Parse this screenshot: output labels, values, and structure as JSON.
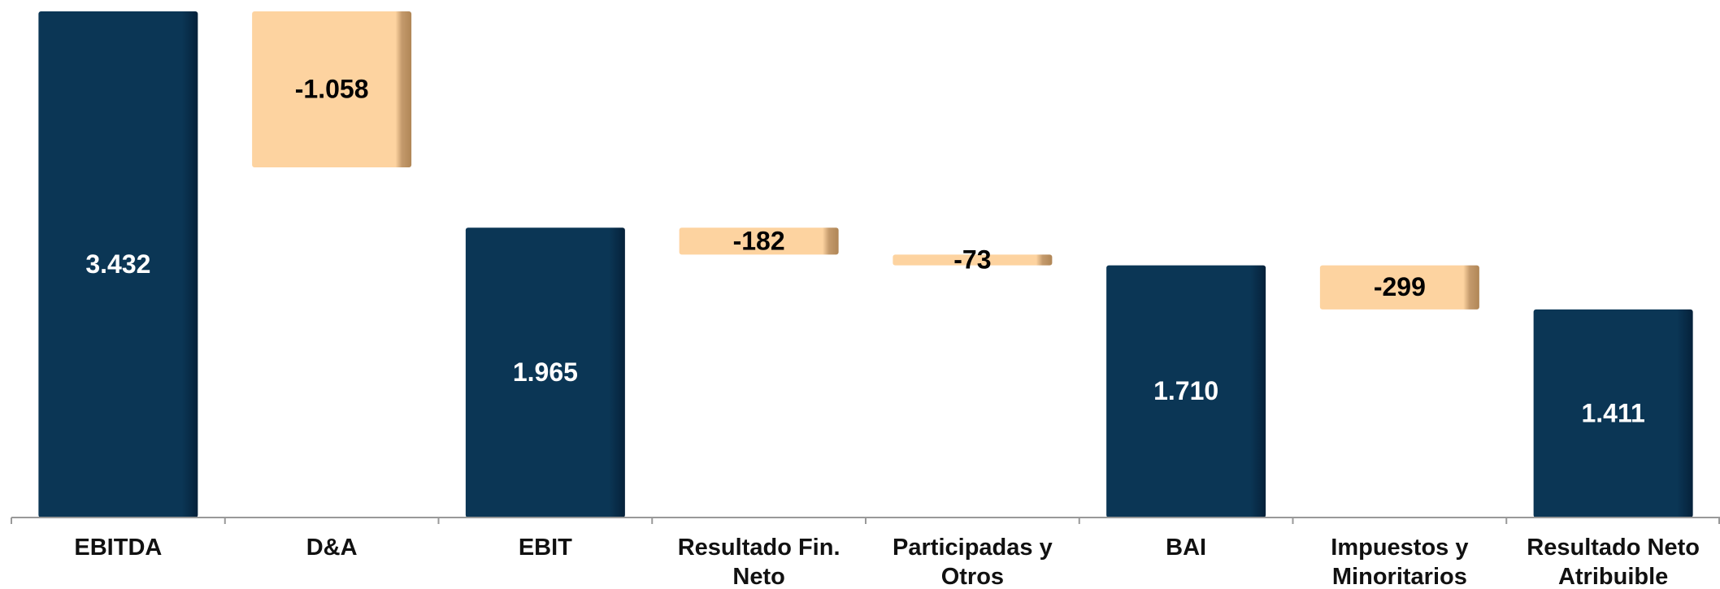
{
  "chart_data": {
    "type": "waterfall",
    "categories": [
      "EBITDA",
      "D&A",
      "EBIT",
      "Resultado Fin.\nNeto",
      "Participadas y\nOtros",
      "BAI",
      "Impuestos y\nMinoritarios",
      "Resultado Neto\nAtribuible"
    ],
    "values": [
      3432,
      -1058,
      1965,
      -182,
      -73,
      1710,
      -299,
      1411
    ],
    "value_labels": [
      "3.432",
      "-1.058",
      "1.965",
      "-182",
      "-73",
      "1.710",
      "-299",
      "1.411"
    ],
    "color": "#0b3655",
    "negative_color": "#fdd3a0"
  }
}
